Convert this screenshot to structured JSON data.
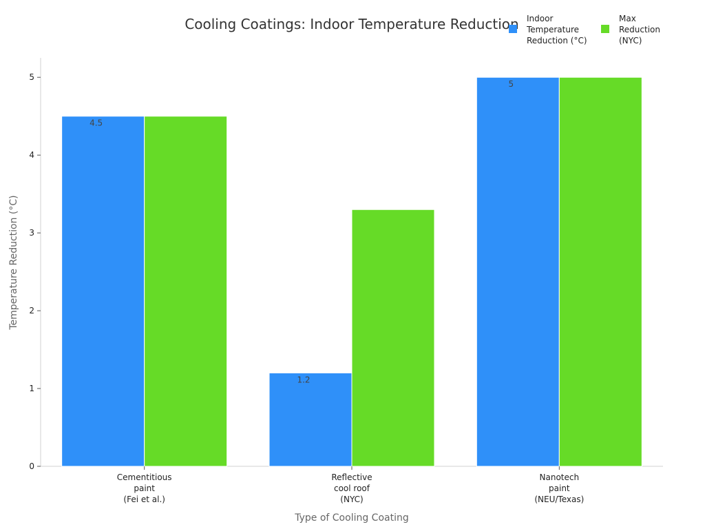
{
  "chart_data": {
    "type": "bar",
    "title": "Cooling Coatings: Indoor Temperature Reduction",
    "xlabel": "Type of Cooling Coating",
    "ylabel": "Temperature Reduction (°C)",
    "ylim": [
      0,
      5.25
    ],
    "yticks": [
      0,
      1,
      2,
      3,
      4,
      5
    ],
    "grid": false,
    "legend_position": "top-right",
    "categories": [
      [
        "Cementitious",
        "paint",
        "(Fei et al.)"
      ],
      [
        "Reflective",
        "cool roof",
        "(NYC)"
      ],
      [
        "Nanotech",
        "paint",
        "(NEU/Texas)"
      ]
    ],
    "series": [
      {
        "name": [
          "Indoor",
          "Temperature",
          "Reduction (°C)"
        ],
        "values": [
          4.5,
          1.2,
          5
        ],
        "data_labels": [
          "4.5",
          "1.2",
          "5"
        ],
        "color": "#2f90f9"
      },
      {
        "name": [
          "Max",
          "Reduction",
          "(NYC)"
        ],
        "values": [
          4.5,
          3.3,
          5
        ],
        "color": "#66db27"
      }
    ]
  }
}
